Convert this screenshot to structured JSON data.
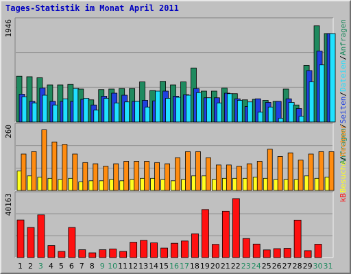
{
  "title": "Tages-Statistik im Monat April 2011",
  "colors": {
    "anfragen": "#1f8a5f",
    "dateien": "#2040e0",
    "seiten": "#20e0ff",
    "besuche": "#ffff20",
    "rechner": "#ff8c10",
    "kb": "#ff1010",
    "weekend_day_label": "#1f8a5f",
    "weekday_label": "#000000",
    "panel_bg": "#c0c0c0",
    "grid": "#909090"
  },
  "chart_data": [
    {
      "type": "bar",
      "name": "top",
      "ymax_label": "1946",
      "ylim": [
        0,
        1946
      ],
      "categories": [
        "1",
        "2",
        "3",
        "4",
        "5",
        "6",
        "7",
        "8",
        "9",
        "10",
        "11",
        "12",
        "13",
        "14",
        "15",
        "16",
        "17",
        "18",
        "19",
        "20",
        "21",
        "22",
        "23",
        "24",
        "25",
        "26",
        "27",
        "28",
        "29",
        "30",
        "31"
      ],
      "legend": [
        "Anfragen",
        "/",
        "Dateien",
        "/",
        "Seiten",
        "/",
        "Anfragen"
      ],
      "series": [
        {
          "name": "Anfragen",
          "values": [
            890,
            880,
            860,
            720,
            720,
            730,
            640,
            430,
            630,
            640,
            650,
            650,
            780,
            610,
            790,
            720,
            780,
            1050,
            600,
            600,
            660,
            550,
            430,
            440,
            420,
            400,
            640,
            330,
            1100,
            1870,
            1720
          ]
        },
        {
          "name": "Dateien",
          "values": [
            540,
            400,
            660,
            400,
            400,
            400,
            440,
            330,
            500,
            560,
            520,
            400,
            420,
            410,
            600,
            500,
            530,
            650,
            470,
            470,
            560,
            450,
            300,
            450,
            380,
            400,
            450,
            260,
            1000,
            1380,
            1720
          ]
        },
        {
          "name": "Seiten",
          "values": [
            490,
            370,
            520,
            330,
            450,
            650,
            460,
            230,
            460,
            370,
            390,
            400,
            290,
            600,
            460,
            480,
            520,
            570,
            470,
            370,
            550,
            420,
            390,
            190,
            290,
            70,
            380,
            110,
            780,
            1110,
            1720
          ]
        }
      ]
    },
    {
      "type": "bar",
      "name": "middle",
      "ymax_label": "260",
      "ylim": [
        0,
        260
      ],
      "legend": [
        "Rechner",
        "/",
        "Besuche"
      ],
      "series": [
        {
          "name": "Besuche",
          "values": [
            80,
            60,
            55,
            50,
            45,
            50,
            35,
            40,
            40,
            45,
            40,
            45,
            50,
            50,
            45,
            40,
            45,
            60,
            60,
            45,
            50,
            50,
            50,
            55,
            50,
            45,
            45,
            45,
            60,
            50,
            55
          ]
        },
        {
          "name": "Rechner",
          "values": [
            150,
            160,
            250,
            200,
            190,
            150,
            115,
            110,
            100,
            110,
            120,
            120,
            120,
            115,
            110,
            135,
            160,
            160,
            135,
            105,
            105,
            100,
            110,
            120,
            170,
            140,
            155,
            125,
            150,
            160,
            160
          ]
        }
      ]
    },
    {
      "type": "bar",
      "name": "bottom",
      "ymax_label": "40163",
      "ylim": [
        0,
        40163
      ],
      "legend": [
        "kB"
      ],
      "series": [
        {
          "name": "kB",
          "values": [
            24500,
            19600,
            27800,
            7800,
            4000,
            19600,
            5100,
            3100,
            5100,
            5600,
            4000,
            10000,
            11200,
            9600,
            6200,
            9300,
            10800,
            15500,
            31300,
            8600,
            30200,
            38400,
            12400,
            8800,
            5000,
            5800,
            6000,
            24400,
            4500,
            8700,
            0
          ]
        }
      ]
    }
  ],
  "x_labels": [
    {
      "text": "1",
      "weekend": false
    },
    {
      "text": "2",
      "weekend": false
    },
    {
      "text": "3",
      "weekend": true
    },
    {
      "text": "4",
      "weekend": false
    },
    {
      "text": "5",
      "weekend": false
    },
    {
      "text": "6",
      "weekend": false
    },
    {
      "text": "7",
      "weekend": false
    },
    {
      "text": "8",
      "weekend": false
    },
    {
      "text": "9",
      "weekend": true
    },
    {
      "text": "10",
      "weekend": true
    },
    {
      "text": "11",
      "weekend": false
    },
    {
      "text": "12",
      "weekend": false
    },
    {
      "text": "13",
      "weekend": false
    },
    {
      "text": "14",
      "weekend": false
    },
    {
      "text": "15",
      "weekend": false
    },
    {
      "text": "16",
      "weekend": true
    },
    {
      "text": "17",
      "weekend": true
    },
    {
      "text": "18",
      "weekend": false
    },
    {
      "text": "19",
      "weekend": false
    },
    {
      "text": "20",
      "weekend": false
    },
    {
      "text": "21",
      "weekend": false
    },
    {
      "text": "22",
      "weekend": false
    },
    {
      "text": "23",
      "weekend": true
    },
    {
      "text": "24",
      "weekend": true
    },
    {
      "text": "25",
      "weekend": false
    },
    {
      "text": "26",
      "weekend": false
    },
    {
      "text": "27",
      "weekend": false
    },
    {
      "text": "28",
      "weekend": false
    },
    {
      "text": "29",
      "weekend": false
    },
    {
      "text": "30",
      "weekend": true
    },
    {
      "text": "31",
      "weekend": true
    }
  ]
}
